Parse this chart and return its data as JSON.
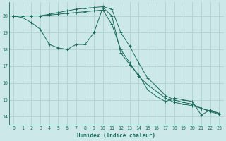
{
  "xlabel": "Humidex (Indice chaleur)",
  "background_color": "#cce8e8",
  "grid_color": "#aacece",
  "line_color": "#1a6b5a",
  "xlim": [
    -0.5,
    23.5
  ],
  "ylim": [
    13.5,
    20.8
  ],
  "yticks": [
    14,
    15,
    16,
    17,
    18,
    19,
    20
  ],
  "xticks": [
    0,
    1,
    2,
    3,
    4,
    5,
    6,
    7,
    8,
    9,
    10,
    11,
    12,
    13,
    14,
    15,
    16,
    17,
    18,
    19,
    20,
    21,
    22,
    23
  ],
  "series": [
    {
      "x": [
        0,
        1,
        2,
        3,
        4,
        5,
        6,
        7,
        8,
        9,
        10,
        11,
        12,
        13,
        14,
        15,
        16,
        17,
        18,
        19,
        20,
        21,
        22,
        23
      ],
      "y": [
        20.0,
        19.9,
        19.6,
        19.2,
        18.3,
        18.1,
        18.0,
        18.3,
        18.3,
        19.0,
        20.5,
        20.0,
        17.8,
        17.1,
        16.5,
        15.6,
        15.2,
        14.9,
        15.1,
        15.0,
        14.9,
        14.1,
        14.4,
        14.2
      ]
    },
    {
      "x": [
        0,
        1,
        2,
        3,
        4,
        5,
        6,
        7,
        8,
        9,
        10,
        11,
        12,
        13,
        14,
        15,
        16,
        17,
        18,
        19,
        20,
        21,
        22,
        23
      ],
      "y": [
        20.0,
        20.0,
        20.0,
        20.0,
        20.05,
        20.1,
        20.15,
        20.2,
        20.25,
        20.3,
        20.35,
        19.5,
        18.0,
        17.2,
        16.4,
        15.9,
        15.5,
        15.1,
        14.85,
        14.75,
        14.65,
        14.5,
        14.3,
        14.15
      ]
    },
    {
      "x": [
        0,
        1,
        2,
        3,
        4,
        5,
        6,
        7,
        8,
        9,
        10,
        11,
        12,
        13,
        14,
        15,
        16,
        17,
        18,
        19,
        20,
        21,
        22,
        23
      ],
      "y": [
        20.0,
        20.0,
        20.0,
        20.0,
        20.1,
        20.2,
        20.3,
        20.4,
        20.45,
        20.5,
        20.55,
        20.4,
        19.0,
        18.2,
        17.2,
        16.3,
        15.8,
        15.25,
        15.0,
        14.85,
        14.75,
        14.5,
        14.35,
        14.2
      ]
    }
  ]
}
